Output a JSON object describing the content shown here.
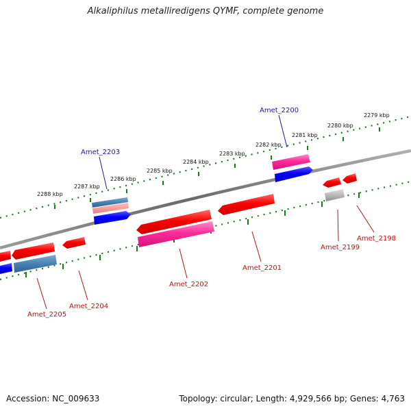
{
  "title": "Alkaliphilus metalliredigens QYMF, complete genome",
  "footer": {
    "accession": "Accession: NC_009633",
    "topology": "Topology: circular; Length: 4,929,566 bp; Genes: 4,763"
  },
  "colors": {
    "backbone": "#808080",
    "ruler": "#1a7a1a",
    "cds": "#ff0000",
    "cds_alt": "#ff2b9a",
    "orf": "#0000ff",
    "rna": "#4682b4",
    "pseudo": "#b8b8b8",
    "label_fwd": "#1a1aa0",
    "label_rev": "#c01010"
  },
  "ruler_ticks": [
    "2279 kbp",
    "2280 kbp",
    "2281 kbp",
    "2282 kbp",
    "2283 kbp",
    "2284 kbp",
    "2285 kbp",
    "2286 kbp",
    "2287 kbp",
    "2288 kbp"
  ],
  "genes_forward": [
    "Amet_2200",
    "Amet_2203"
  ],
  "genes_reverse": [
    "Amet_2198",
    "Amet_2199",
    "Amet_2201",
    "Amet_2202",
    "Amet_2204",
    "Amet_2205"
  ]
}
